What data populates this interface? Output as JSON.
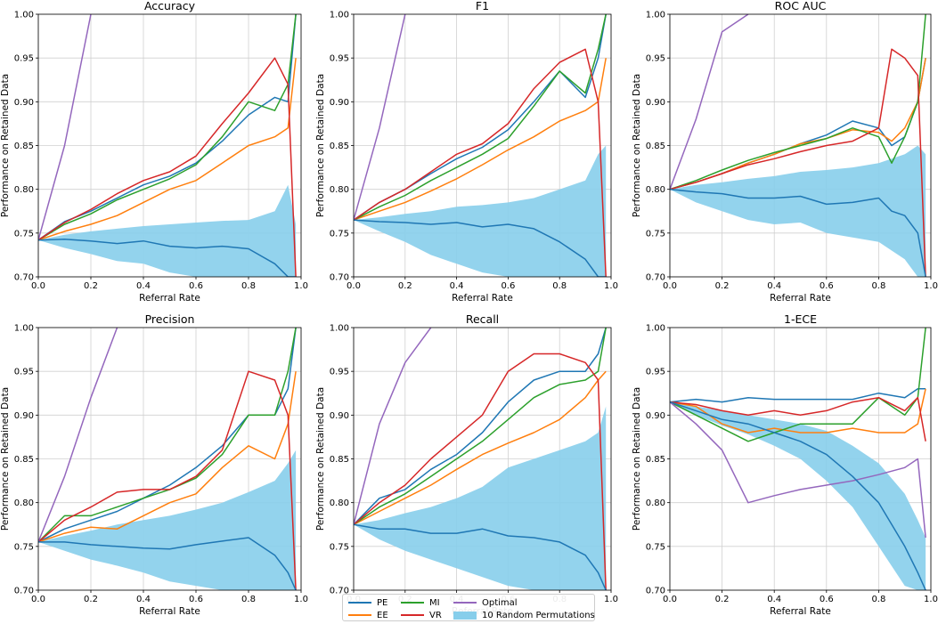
{
  "chart_data": [
    {
      "type": "line",
      "title": "Accuracy",
      "xlabel": "Referral Rate",
      "ylabel": "Performance on Retained Data",
      "xlim": [
        0.0,
        1.0
      ],
      "ylim": [
        0.7,
        1.0
      ],
      "xticks": [
        "0.0",
        "0.2",
        "0.4",
        "0.6",
        "0.8",
        "1.0"
      ],
      "yticks": [
        "0.70",
        "0.75",
        "0.80",
        "0.85",
        "0.90",
        "0.95",
        "1.00"
      ],
      "grid": true,
      "x": [
        0.0,
        0.1,
        0.2,
        0.3,
        0.4,
        0.5,
        0.6,
        0.7,
        0.8,
        0.9,
        0.95,
        0.98
      ],
      "series": [
        {
          "name": "PE",
          "values": [
            0.742,
            0.763,
            0.775,
            0.79,
            0.805,
            0.815,
            0.83,
            0.855,
            0.885,
            0.905,
            0.9,
            1.0
          ]
        },
        {
          "name": "EE",
          "values": [
            0.742,
            0.752,
            0.76,
            0.77,
            0.785,
            0.8,
            0.81,
            0.83,
            0.85,
            0.86,
            0.87,
            0.95
          ]
        },
        {
          "name": "MI",
          "values": [
            0.742,
            0.76,
            0.772,
            0.788,
            0.8,
            0.812,
            0.828,
            0.86,
            0.9,
            0.89,
            0.92,
            1.0
          ]
        },
        {
          "name": "VR",
          "values": [
            0.742,
            0.762,
            0.777,
            0.795,
            0.81,
            0.82,
            0.838,
            0.875,
            0.91,
            0.95,
            0.92,
            0.7
          ]
        },
        {
          "name": "Optimal",
          "values": [
            0.742,
            0.85,
            1.0,
            null,
            null,
            null,
            null,
            null,
            null,
            null,
            null,
            null
          ]
        },
        {
          "name": "10 Random Permutations",
          "values": [
            0.742,
            0.743,
            0.741,
            0.738,
            0.741,
            0.735,
            0.733,
            0.735,
            0.732,
            0.715,
            0.7,
            0.7
          ]
        }
      ],
      "band": {
        "name": "10 Random Permutations",
        "lower": [
          0.742,
          0.733,
          0.726,
          0.718,
          0.715,
          0.705,
          0.7,
          0.7,
          0.7,
          0.7,
          0.7,
          0.7
        ],
        "upper": [
          0.742,
          0.748,
          0.752,
          0.755,
          0.758,
          0.76,
          0.762,
          0.764,
          0.765,
          0.775,
          0.805,
          0.76
        ]
      }
    },
    {
      "type": "line",
      "title": "F1",
      "xlabel": "Referral Rate",
      "ylabel": "Performance on Retained Data",
      "xlim": [
        0.0,
        1.0
      ],
      "ylim": [
        0.7,
        1.0
      ],
      "xticks": [
        "0.0",
        "0.2",
        "0.4",
        "0.6",
        "0.8",
        "1.0"
      ],
      "yticks": [
        "0.70",
        "0.75",
        "0.80",
        "0.85",
        "0.90",
        "0.95",
        "1.00"
      ],
      "grid": true,
      "x": [
        0.0,
        0.1,
        0.2,
        0.3,
        0.4,
        0.5,
        0.6,
        0.7,
        0.8,
        0.9,
        0.95,
        0.98
      ],
      "series": [
        {
          "name": "PE",
          "values": [
            0.765,
            0.785,
            0.8,
            0.818,
            0.835,
            0.848,
            0.868,
            0.9,
            0.935,
            0.905,
            0.95,
            1.0
          ]
        },
        {
          "name": "EE",
          "values": [
            0.765,
            0.775,
            0.785,
            0.798,
            0.812,
            0.828,
            0.845,
            0.86,
            0.878,
            0.89,
            0.9,
            0.95
          ]
        },
        {
          "name": "MI",
          "values": [
            0.765,
            0.78,
            0.793,
            0.81,
            0.825,
            0.84,
            0.858,
            0.895,
            0.935,
            0.91,
            0.96,
            1.0
          ]
        },
        {
          "name": "VR",
          "values": [
            0.765,
            0.785,
            0.8,
            0.82,
            0.84,
            0.852,
            0.875,
            0.915,
            0.945,
            0.96,
            0.9,
            0.7
          ]
        },
        {
          "name": "Optimal",
          "values": [
            0.765,
            0.87,
            1.0,
            null,
            null,
            null,
            null,
            null,
            null,
            null,
            null,
            null
          ]
        },
        {
          "name": "10 Random Permutations",
          "values": [
            0.765,
            0.763,
            0.762,
            0.76,
            0.762,
            0.757,
            0.76,
            0.755,
            0.74,
            0.72,
            0.7,
            0.7
          ]
        }
      ],
      "band": {
        "name": "10 Random Permutations",
        "lower": [
          0.765,
          0.752,
          0.74,
          0.725,
          0.715,
          0.705,
          0.7,
          0.7,
          0.7,
          0.7,
          0.7,
          0.7
        ],
        "upper": [
          0.765,
          0.768,
          0.772,
          0.775,
          0.78,
          0.782,
          0.785,
          0.79,
          0.8,
          0.81,
          0.84,
          0.85
        ]
      }
    },
    {
      "type": "line",
      "title": "ROC AUC",
      "xlabel": "Referral Rate",
      "ylabel": "Performance on Retained Data",
      "xlim": [
        0.0,
        1.0
      ],
      "ylim": [
        0.7,
        1.0
      ],
      "xticks": [
        "0.0",
        "0.2",
        "0.4",
        "0.6",
        "0.8",
        "1.0"
      ],
      "yticks": [
        "0.70",
        "0.75",
        "0.80",
        "0.85",
        "0.90",
        "0.95",
        "1.00"
      ],
      "grid": true,
      "x": [
        0.0,
        0.1,
        0.2,
        0.3,
        0.4,
        0.5,
        0.6,
        0.7,
        0.8,
        0.85,
        0.9,
        0.95,
        0.98
      ],
      "series": [
        {
          "name": "PE",
          "values": [
            0.8,
            0.808,
            0.818,
            0.83,
            0.84,
            0.852,
            0.862,
            0.878,
            0.87,
            0.85,
            0.86,
            0.9,
            0.95
          ]
        },
        {
          "name": "EE",
          "values": [
            0.8,
            0.808,
            0.818,
            0.83,
            0.84,
            0.852,
            0.858,
            0.868,
            0.865,
            0.855,
            0.87,
            0.9,
            0.95
          ]
        },
        {
          "name": "MI",
          "values": [
            0.8,
            0.81,
            0.822,
            0.833,
            0.842,
            0.85,
            0.858,
            0.87,
            0.86,
            0.83,
            0.86,
            0.9,
            1.0
          ]
        },
        {
          "name": "VR",
          "values": [
            0.8,
            0.808,
            0.818,
            0.828,
            0.835,
            0.843,
            0.85,
            0.855,
            0.87,
            0.96,
            0.95,
            0.93,
            0.7
          ]
        },
        {
          "name": "Optimal",
          "values": [
            0.8,
            0.88,
            0.98,
            1.0,
            null,
            null,
            null,
            null,
            null,
            null,
            null,
            null,
            null
          ]
        },
        {
          "name": "10 Random Permutations",
          "values": [
            0.8,
            0.797,
            0.795,
            0.79,
            0.79,
            0.792,
            0.783,
            0.785,
            0.79,
            0.775,
            0.77,
            0.75,
            0.7
          ]
        }
      ],
      "band": {
        "name": "10 Random Permutations",
        "lower": [
          0.8,
          0.785,
          0.775,
          0.765,
          0.76,
          0.762,
          0.75,
          0.745,
          0.74,
          0.73,
          0.72,
          0.7,
          0.7
        ],
        "upper": [
          0.8,
          0.805,
          0.808,
          0.812,
          0.815,
          0.82,
          0.822,
          0.825,
          0.83,
          0.835,
          0.84,
          0.85,
          0.84
        ]
      }
    },
    {
      "type": "line",
      "title": "Precision",
      "xlabel": "Referral Rate",
      "ylabel": "Performance on Retained Data",
      "xlim": [
        0.0,
        1.0
      ],
      "ylim": [
        0.7,
        1.0
      ],
      "xticks": [
        "0.0",
        "0.2",
        "0.4",
        "0.6",
        "0.8",
        "1.0"
      ],
      "yticks": [
        "0.70",
        "0.75",
        "0.80",
        "0.85",
        "0.90",
        "0.95",
        "1.00"
      ],
      "grid": true,
      "x": [
        0.0,
        0.1,
        0.2,
        0.3,
        0.4,
        0.5,
        0.6,
        0.7,
        0.8,
        0.9,
        0.95,
        0.98
      ],
      "series": [
        {
          "name": "PE",
          "values": [
            0.755,
            0.77,
            0.78,
            0.79,
            0.805,
            0.82,
            0.84,
            0.865,
            0.9,
            0.9,
            0.93,
            1.0
          ]
        },
        {
          "name": "EE",
          "values": [
            0.755,
            0.765,
            0.772,
            0.77,
            0.785,
            0.8,
            0.81,
            0.84,
            0.865,
            0.85,
            0.89,
            0.95
          ]
        },
        {
          "name": "MI",
          "values": [
            0.755,
            0.785,
            0.785,
            0.795,
            0.805,
            0.815,
            0.828,
            0.855,
            0.9,
            0.9,
            0.95,
            1.0
          ]
        },
        {
          "name": "VR",
          "values": [
            0.755,
            0.78,
            0.795,
            0.812,
            0.815,
            0.815,
            0.83,
            0.86,
            0.95,
            0.94,
            0.9,
            0.7
          ]
        },
        {
          "name": "Optimal",
          "values": [
            0.755,
            0.83,
            0.92,
            1.0,
            null,
            null,
            null,
            null,
            null,
            null,
            null,
            null
          ]
        },
        {
          "name": "10 Random Permutations",
          "values": [
            0.755,
            0.755,
            0.752,
            0.75,
            0.748,
            0.747,
            0.752,
            0.756,
            0.76,
            0.74,
            0.72,
            0.7
          ]
        }
      ],
      "band": {
        "name": "10 Random Permutations",
        "lower": [
          0.755,
          0.745,
          0.735,
          0.728,
          0.72,
          0.71,
          0.705,
          0.7,
          0.7,
          0.7,
          0.7,
          0.7
        ],
        "upper": [
          0.755,
          0.762,
          0.768,
          0.775,
          0.78,
          0.785,
          0.792,
          0.8,
          0.812,
          0.825,
          0.845,
          0.86
        ]
      }
    },
    {
      "type": "line",
      "title": "Recall",
      "xlabel": "Referral Rate",
      "ylabel": "Performance on Retained Data",
      "xlim": [
        0.0,
        1.0
      ],
      "ylim": [
        0.7,
        1.0
      ],
      "xticks": [
        "0.0",
        "0.2",
        "0.4",
        "0.6",
        "0.8",
        "1.0"
      ],
      "yticks": [
        "0.70",
        "0.75",
        "0.80",
        "0.85",
        "0.90",
        "0.95",
        "1.00"
      ],
      "grid": true,
      "x": [
        0.0,
        0.1,
        0.2,
        0.3,
        0.4,
        0.5,
        0.6,
        0.7,
        0.8,
        0.9,
        0.95,
        0.98
      ],
      "series": [
        {
          "name": "PE",
          "values": [
            0.775,
            0.805,
            0.815,
            0.838,
            0.855,
            0.88,
            0.915,
            0.94,
            0.95,
            0.95,
            0.97,
            1.0
          ]
        },
        {
          "name": "EE",
          "values": [
            0.775,
            0.79,
            0.805,
            0.82,
            0.838,
            0.855,
            0.868,
            0.88,
            0.895,
            0.92,
            0.94,
            0.95
          ]
        },
        {
          "name": "MI",
          "values": [
            0.775,
            0.795,
            0.81,
            0.83,
            0.85,
            0.87,
            0.895,
            0.92,
            0.935,
            0.94,
            0.95,
            1.0
          ]
        },
        {
          "name": "VR",
          "values": [
            0.775,
            0.8,
            0.82,
            0.85,
            0.875,
            0.9,
            0.95,
            0.97,
            0.97,
            0.96,
            0.94,
            0.7
          ]
        },
        {
          "name": "Optimal",
          "values": [
            0.775,
            0.89,
            0.96,
            1.0,
            null,
            null,
            null,
            null,
            null,
            null,
            null,
            null
          ]
        },
        {
          "name": "10 Random Permutations",
          "values": [
            0.775,
            0.77,
            0.77,
            0.765,
            0.765,
            0.77,
            0.762,
            0.76,
            0.755,
            0.74,
            0.72,
            0.7
          ]
        }
      ],
      "band": {
        "name": "10 Random Permutations",
        "lower": [
          0.775,
          0.758,
          0.745,
          0.735,
          0.725,
          0.715,
          0.705,
          0.7,
          0.7,
          0.7,
          0.7,
          0.7
        ],
        "upper": [
          0.775,
          0.78,
          0.788,
          0.795,
          0.805,
          0.818,
          0.84,
          0.85,
          0.86,
          0.87,
          0.88,
          0.91
        ]
      }
    },
    {
      "type": "line",
      "title": "1-ECE",
      "xlabel": "Referral Rate",
      "ylabel": "Performance on Retained Data",
      "xlim": [
        0.0,
        1.0
      ],
      "ylim": [
        0.7,
        1.0
      ],
      "xticks": [
        "0.0",
        "0.2",
        "0.4",
        "0.6",
        "0.8",
        "1.0"
      ],
      "yticks": [
        "0.70",
        "0.75",
        "0.80",
        "0.85",
        "0.90",
        "0.95",
        "1.00"
      ],
      "grid": true,
      "x": [
        0.0,
        0.1,
        0.2,
        0.3,
        0.4,
        0.5,
        0.6,
        0.7,
        0.8,
        0.9,
        0.95,
        0.98
      ],
      "series": [
        {
          "name": "PE",
          "values": [
            0.915,
            0.918,
            0.915,
            0.92,
            0.918,
            0.918,
            0.918,
            0.918,
            0.925,
            0.92,
            0.93,
            0.93
          ]
        },
        {
          "name": "EE",
          "values": [
            0.915,
            0.91,
            0.89,
            0.88,
            0.885,
            0.88,
            0.88,
            0.885,
            0.88,
            0.88,
            0.89,
            0.93
          ]
        },
        {
          "name": "MI",
          "values": [
            0.915,
            0.9,
            0.885,
            0.87,
            0.88,
            0.89,
            0.89,
            0.89,
            0.92,
            0.9,
            0.92,
            1.0
          ]
        },
        {
          "name": "VR",
          "values": [
            0.915,
            0.912,
            0.905,
            0.9,
            0.905,
            0.9,
            0.905,
            0.915,
            0.92,
            0.905,
            0.92,
            0.87
          ]
        },
        {
          "name": "Optimal",
          "values": [
            0.915,
            0.89,
            0.86,
            0.8,
            0.808,
            0.815,
            0.82,
            0.825,
            0.832,
            0.84,
            0.85,
            0.76
          ]
        },
        {
          "name": "10 Random Permutations",
          "values": [
            0.915,
            0.905,
            0.895,
            0.89,
            0.88,
            0.87,
            0.855,
            0.83,
            0.8,
            0.75,
            0.72,
            0.7
          ]
        }
      ],
      "band": {
        "name": "10 Random Permutations",
        "lower": [
          0.915,
          0.9,
          0.888,
          0.878,
          0.865,
          0.85,
          0.825,
          0.795,
          0.75,
          0.705,
          0.7,
          0.7
        ],
        "upper": [
          0.915,
          0.91,
          0.905,
          0.9,
          0.895,
          0.89,
          0.882,
          0.865,
          0.845,
          0.81,
          0.78,
          0.76
        ]
      }
    }
  ],
  "legend": {
    "placement": "bottom-center",
    "items": [
      {
        "label": "PE",
        "color": "#1f77b4",
        "kind": "line"
      },
      {
        "label": "EE",
        "color": "#ff7f0e",
        "kind": "line"
      },
      {
        "label": "MI",
        "color": "#2ca02c",
        "kind": "line"
      },
      {
        "label": "VR",
        "color": "#d62728",
        "kind": "line"
      },
      {
        "label": "Optimal",
        "color": "#9467bd",
        "kind": "line"
      },
      {
        "label": "10 Random Permutations",
        "color": "#87ceeb",
        "kind": "patch"
      }
    ]
  },
  "colors": {
    "PE": "#1f77b4",
    "EE": "#ff7f0e",
    "MI": "#2ca02c",
    "VR": "#d62728",
    "Optimal": "#9467bd",
    "10 Random Permutations": "#1f77b4",
    "band": "#87ceeb"
  }
}
